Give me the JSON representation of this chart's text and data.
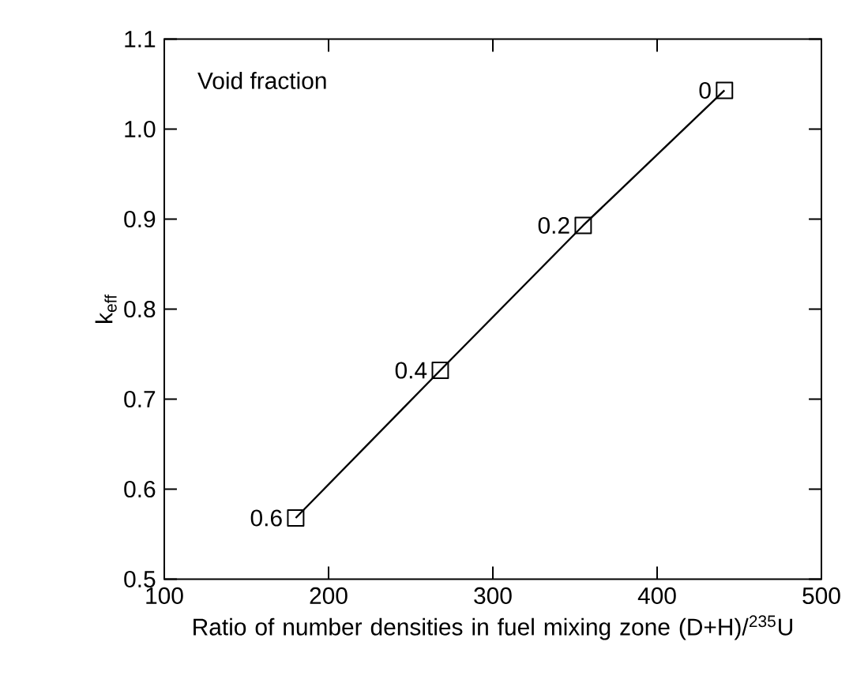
{
  "chart_data": {
    "type": "line",
    "xlabel": "Ratio of number densities in fuel mixing zone (D+H)/$^{235}$U",
    "ylabel": "k$_{eff}$",
    "series": [
      {
        "x": [
          180,
          268,
          355,
          441
        ],
        "values": [
          0.568,
          0.732,
          0.893,
          1.043
        ],
        "color": "#000000"
      }
    ],
    "marker": "square",
    "line_style": "solid",
    "xlim": [
      100,
      500
    ],
    "xticks": [
      100,
      200,
      300,
      400,
      500
    ],
    "ylim": [
      0.5,
      1.1
    ],
    "yticks": [
      0.5,
      0.6,
      0.7,
      0.8,
      0.9,
      {
        "value": 1.0,
        "label": "1.0"
      },
      1.1
    ],
    "annotations": [
      "Void fraction",
      {
        "text": "0.6",
        "x": 180,
        "y": 0.568
      },
      {
        "text": "0.4",
        "x": 268,
        "y": 0.732
      },
      {
        "text": "0.2",
        "x": 355,
        "y": 0.893
      },
      {
        "text": "0",
        "x": 441,
        "y": 1.043
      }
    ]
  }
}
